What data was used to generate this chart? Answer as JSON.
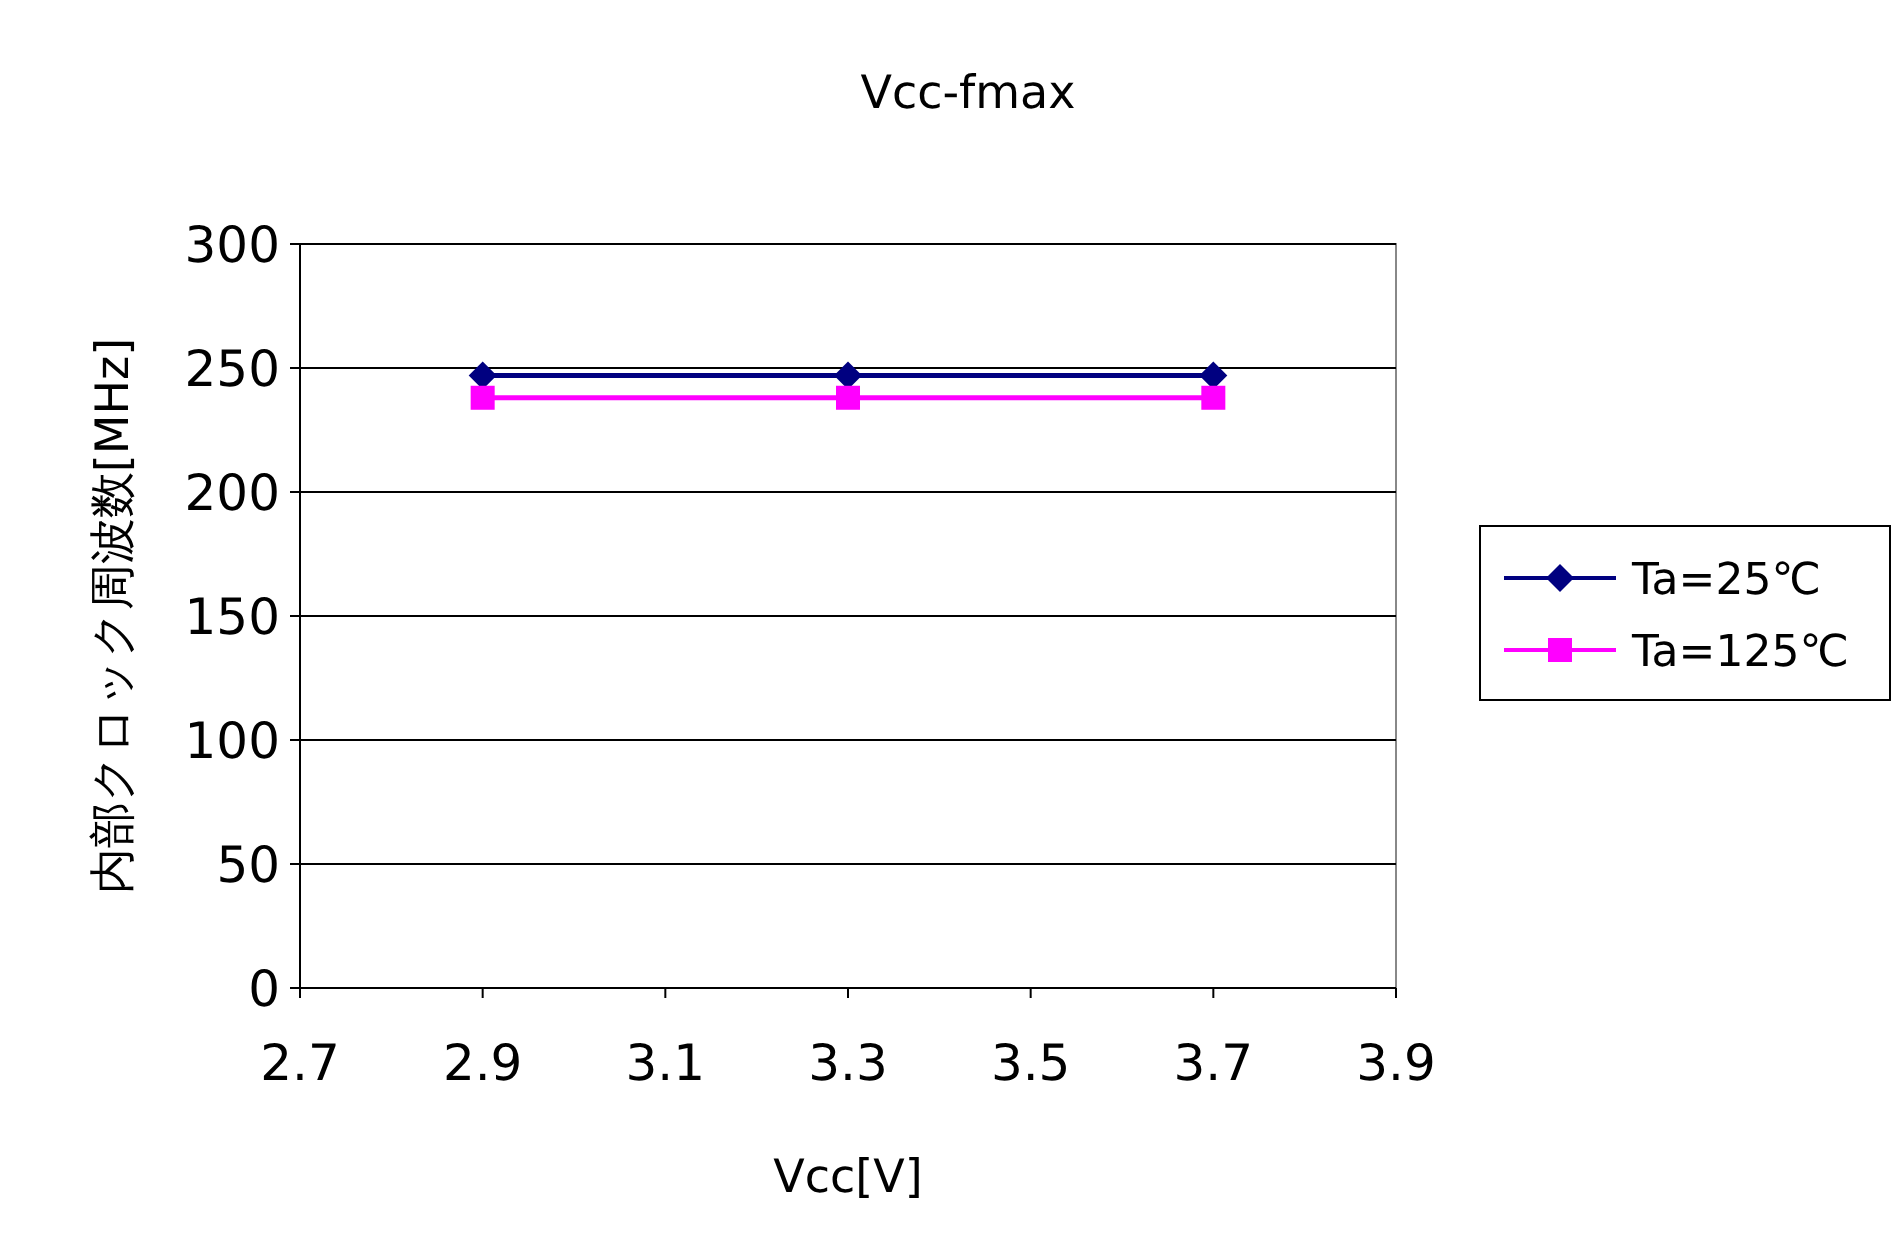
{
  "chart_data": {
    "type": "line",
    "title": "Vcc-fmax",
    "xlabel": "Vcc[V]",
    "ylabel": "内部クロック周波数[MHz]",
    "x": [
      2.9,
      3.3,
      3.7
    ],
    "series": [
      {
        "name": "Ta=25℃",
        "color": "#000080",
        "values": [
          247,
          247,
          247
        ],
        "marker": "diamond"
      },
      {
        "name": "Ta=125℃",
        "color": "#ff00ff",
        "values": [
          238,
          238,
          238
        ],
        "marker": "square"
      }
    ],
    "xlim": [
      2.7,
      3.9
    ],
    "xticks": [
      2.7,
      2.9,
      3.1,
      3.3,
      3.5,
      3.7,
      3.9
    ],
    "ylim": [
      0,
      300
    ],
    "yticks": [
      0,
      50,
      100,
      150,
      200,
      250,
      300
    ],
    "grid": "y",
    "legend": "right"
  }
}
